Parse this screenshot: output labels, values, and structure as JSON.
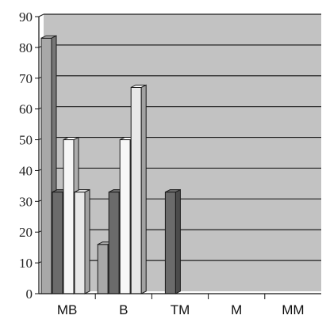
{
  "chart_data": {
    "type": "bar",
    "title": "",
    "xlabel": "",
    "ylabel": "",
    "categories": [
      "MB",
      "B",
      "TM",
      "M",
      "MM"
    ],
    "series": [
      {
        "values": [
          83,
          16,
          0,
          0,
          0
        ]
      },
      {
        "values": [
          33,
          33,
          33,
          0,
          0
        ]
      },
      {
        "values": [
          50,
          50,
          0,
          0,
          0
        ]
      },
      {
        "values": [
          33,
          67,
          0,
          0,
          0
        ]
      }
    ],
    "ylim": [
      0,
      90
    ],
    "yticks": [
      "0",
      "10",
      "20",
      "30",
      "40",
      "50",
      "60",
      "70",
      "80",
      "90"
    ],
    "grid": true,
    "legend": "none",
    "style": {
      "plot_background": "#c2c2c2",
      "grid_color": "#1e1e1e",
      "axis_color": "#111111",
      "series_colors": [
        "#a8a8a8",
        "#6b6b6b",
        "#f7f7f7",
        "#e8e8e8"
      ],
      "bar_3d": true
    }
  }
}
